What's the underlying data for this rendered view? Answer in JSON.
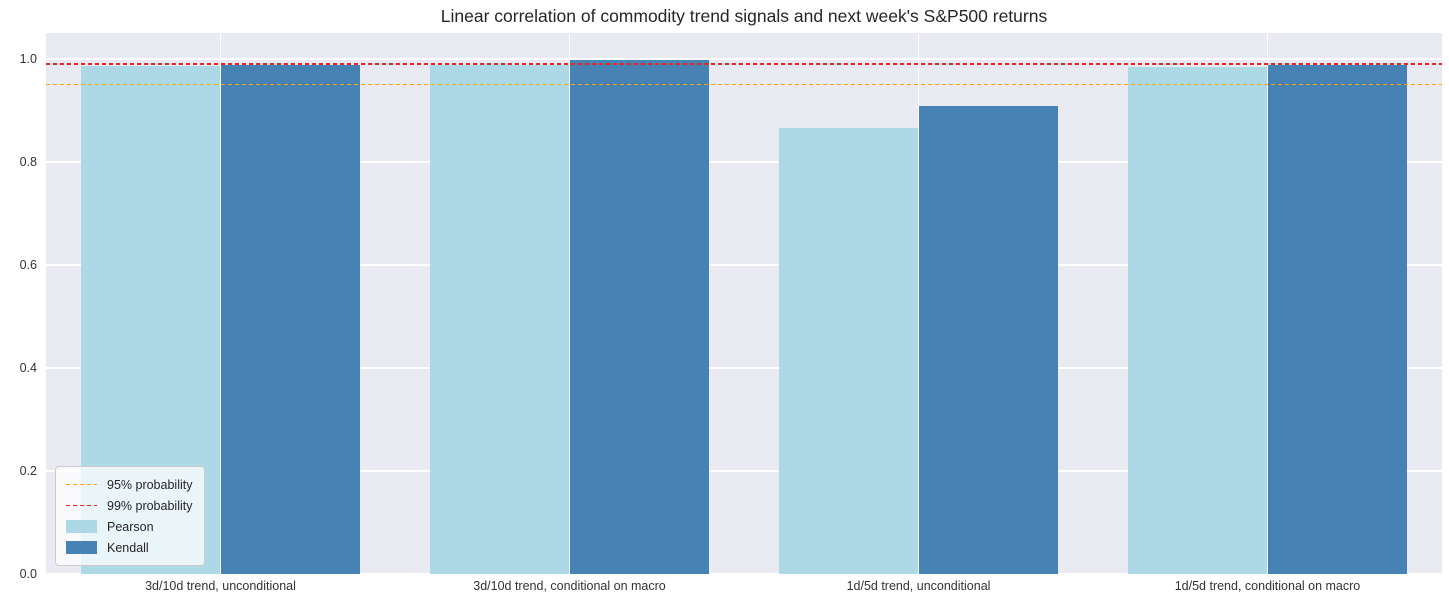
{
  "title": "Linear correlation of commodity trend signals and next week's S&P500 returns",
  "colors": {
    "figure_bg": "#ffffff",
    "plot_bg": "#eaeaf2",
    "grid": "#ffffff",
    "pearson": "#add8e6",
    "kendall": "#4682b4",
    "line_95": "#ffa500",
    "line_99": "#f52020",
    "text": "#262626"
  },
  "chart_data": {
    "type": "bar",
    "title": "Linear correlation of commodity trend signals and next week's S&P500 returns",
    "categories": [
      "3d/10d trend, unconditional",
      "3d/10d trend, conditional on macro",
      "1d/5d trend, unconditional",
      "1d/5d trend, conditional on macro"
    ],
    "series": [
      {
        "name": "Pearson",
        "color": "#add8e6",
        "values": [
          0.986,
          0.988,
          0.865,
          0.985
        ]
      },
      {
        "name": "Kendall",
        "color": "#4682b4",
        "values": [
          0.987,
          0.998,
          0.909,
          0.987
        ]
      }
    ],
    "reference_lines": [
      {
        "label": "95% probability",
        "value": 0.95,
        "color": "#ffa500",
        "style": "dashed"
      },
      {
        "label": "99% probability",
        "value": 0.99,
        "color": "#f52020",
        "style": "dashed"
      }
    ],
    "xlabel": "",
    "ylabel": "",
    "yticks": [
      "0.0",
      "0.2",
      "0.4",
      "0.6",
      "0.8",
      "1.0"
    ],
    "ytick_values": [
      0.0,
      0.2,
      0.4,
      0.6,
      0.8,
      1.0
    ],
    "ylim": [
      0.0,
      1.05
    ],
    "grid": true,
    "legend_position": "lower left"
  }
}
